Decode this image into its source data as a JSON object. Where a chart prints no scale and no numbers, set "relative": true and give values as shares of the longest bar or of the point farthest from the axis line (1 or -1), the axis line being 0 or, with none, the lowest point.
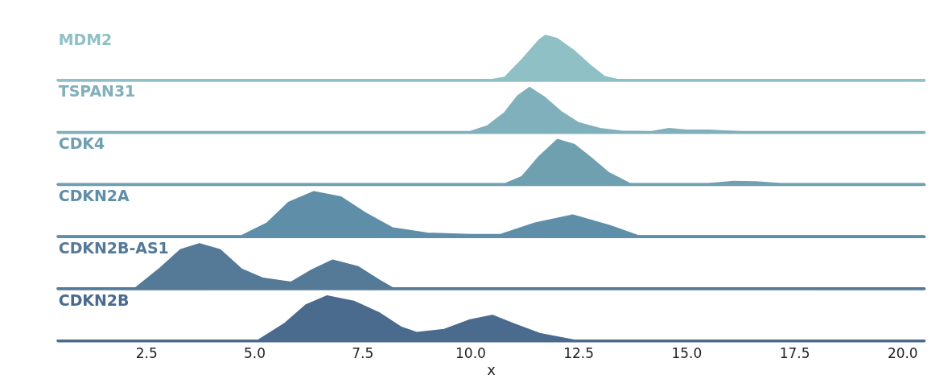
{
  "chart_data": [
    {
      "type": "area",
      "relative": true,
      "tick_labels": false,
      "xlim": [
        0.45,
        20.5
      ],
      "series": [
        {
          "name": "MDM2",
          "color": "#8fc0c6",
          "x": [
            0.45,
            10.5,
            10.8,
            11.2,
            11.6,
            11.74,
            12.0,
            12.4,
            12.8,
            13.1,
            13.4,
            20.5
          ],
          "values": [
            0,
            0,
            0.05,
            0.45,
            0.9,
            1.0,
            0.93,
            0.65,
            0.3,
            0.07,
            0,
            0
          ]
        }
      ]
    },
    {
      "type": "area",
      "relative": true,
      "tick_labels": false,
      "xlim": [
        0.45,
        20.5
      ],
      "series": [
        {
          "name": "TSPAN31",
          "color": "#80b0bb",
          "x": [
            0.45,
            10.0,
            10.4,
            10.8,
            11.1,
            11.37,
            11.7,
            12.1,
            12.5,
            13.0,
            13.5,
            14.2,
            14.6,
            15.0,
            15.5,
            16.0,
            16.3,
            20.5
          ],
          "values": [
            0,
            0,
            0.13,
            0.43,
            0.81,
            1.0,
            0.79,
            0.45,
            0.2,
            0.07,
            0.01,
            0,
            0.07,
            0.03,
            0.03,
            0.01,
            0,
            0
          ]
        }
      ]
    },
    {
      "type": "area",
      "relative": true,
      "tick_labels": false,
      "xlim": [
        0.45,
        20.5
      ],
      "series": [
        {
          "name": "CDK4",
          "color": "#6fa0b0",
          "x": [
            0.45,
            10.8,
            11.2,
            11.6,
            12.02,
            12.4,
            12.8,
            13.2,
            13.7,
            15.5,
            16.1,
            16.6,
            17.2,
            20.5
          ],
          "values": [
            0,
            0,
            0.16,
            0.62,
            1.0,
            0.89,
            0.58,
            0.25,
            0,
            0,
            0.05,
            0.04,
            0,
            0
          ]
        }
      ]
    },
    {
      "type": "area",
      "relative": true,
      "tick_labels": false,
      "xlim": [
        0.45,
        20.5
      ],
      "series": [
        {
          "name": "CDKN2A",
          "color": "#5f8fa8",
          "x": [
            0.45,
            4.7,
            5.3,
            5.8,
            6.38,
            7.0,
            7.6,
            8.2,
            9.0,
            10.0,
            10.7,
            11.5,
            12.37,
            13.2,
            13.9,
            20.5
          ],
          "values": [
            0,
            0,
            0.29,
            0.76,
            1.0,
            0.88,
            0.5,
            0.18,
            0.06,
            0.03,
            0.03,
            0.29,
            0.47,
            0.24,
            0,
            0
          ]
        }
      ]
    },
    {
      "type": "area",
      "relative": true,
      "tick_labels": false,
      "xlim": [
        0.45,
        20.5
      ],
      "series": [
        {
          "name": "CDKN2B-AS1",
          "color": "#547a98",
          "x": [
            0.45,
            2.25,
            2.8,
            3.3,
            3.73,
            4.2,
            4.7,
            5.2,
            5.85,
            6.3,
            6.81,
            7.4,
            7.9,
            8.2,
            20.5
          ],
          "values": [
            0,
            0,
            0.43,
            0.87,
            1.0,
            0.87,
            0.43,
            0.22,
            0.13,
            0.39,
            0.63,
            0.48,
            0.17,
            0,
            0
          ]
        }
      ]
    },
    {
      "type": "area",
      "relative": true,
      "tick_labels": "x",
      "xlabel": "x",
      "xlim": [
        0.45,
        20.5
      ],
      "xticks": [
        {
          "value": 2.5,
          "label": "2.5"
        },
        {
          "value": 5,
          "label": "5.0"
        },
        {
          "value": 7.5,
          "label": "7.5"
        },
        {
          "value": 10,
          "label": "10.0"
        },
        {
          "value": 12.5,
          "label": "12.5"
        },
        {
          "value": 15,
          "label": "15.0"
        },
        {
          "value": 17.5,
          "label": "17.5"
        },
        {
          "value": 20,
          "label": "20.0"
        }
      ],
      "series": [
        {
          "name": "CDKN2B",
          "color": "#4a6a8e",
          "x": [
            0.45,
            5.1,
            5.7,
            6.2,
            6.68,
            7.3,
            7.9,
            8.4,
            8.76,
            9.4,
            10.0,
            10.51,
            11.0,
            11.6,
            12.4,
            20.5
          ],
          "values": [
            0,
            0,
            0.37,
            0.8,
            1.0,
            0.88,
            0.61,
            0.29,
            0.17,
            0.24,
            0.46,
            0.56,
            0.37,
            0.15,
            0,
            0
          ]
        }
      ]
    }
  ]
}
